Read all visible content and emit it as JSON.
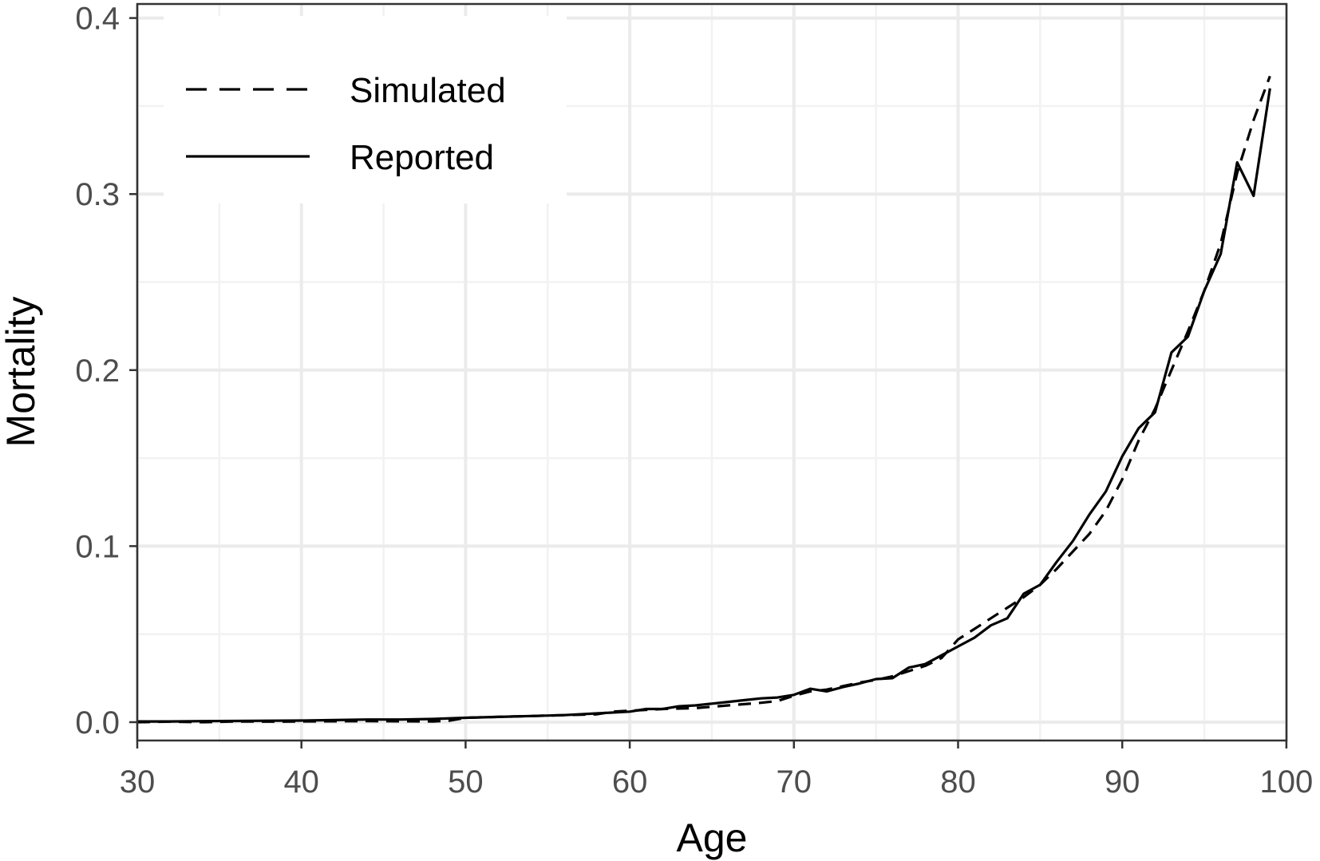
{
  "chart_data": {
    "type": "line",
    "xlabel": "Age",
    "ylabel": "Mortality",
    "xlim": [
      30,
      100
    ],
    "ylim": [
      0,
      0.4
    ],
    "x_ticks": [
      30,
      40,
      50,
      60,
      70,
      80,
      90,
      100
    ],
    "y_ticks": [
      0.0,
      0.1,
      0.2,
      0.3,
      0.4
    ],
    "x_tick_labels": [
      "30",
      "40",
      "50",
      "60",
      "70",
      "80",
      "90",
      "100"
    ],
    "y_tick_labels": [
      "0.0",
      "0.1",
      "0.2",
      "0.3",
      "0.4"
    ],
    "grid": true,
    "legend_position": "top-left",
    "series": [
      {
        "name": "Simulated",
        "style": "dashed",
        "color": "#000000",
        "x": [
          30,
          32,
          34,
          36,
          38,
          40,
          42,
          44,
          46,
          48,
          49,
          50,
          52,
          54,
          56,
          58,
          59,
          60,
          62,
          64,
          66,
          68,
          69,
          70,
          71,
          72,
          73,
          74,
          75,
          76,
          77,
          78,
          79,
          80,
          81,
          82,
          83,
          84,
          85,
          86,
          87,
          88,
          89,
          90,
          91,
          92,
          93,
          94,
          95,
          96,
          97,
          98,
          99
        ],
        "y": [
          0.0,
          0.0003,
          0.0,
          0.0004,
          0.0003,
          0.0004,
          0.0005,
          0.0006,
          0.0005,
          0.0004,
          0.0008,
          0.0025,
          0.003,
          0.0035,
          0.004,
          0.0045,
          0.006,
          0.0065,
          0.0075,
          0.008,
          0.0095,
          0.011,
          0.012,
          0.015,
          0.0175,
          0.0185,
          0.0205,
          0.0225,
          0.024,
          0.026,
          0.029,
          0.032,
          0.0365,
          0.047,
          0.053,
          0.059,
          0.065,
          0.071,
          0.078,
          0.087,
          0.097,
          0.107,
          0.12,
          0.138,
          0.16,
          0.178,
          0.2,
          0.222,
          0.245,
          0.272,
          0.312,
          0.342,
          0.367
        ]
      },
      {
        "name": "Reported",
        "style": "solid",
        "color": "#000000",
        "x": [
          30,
          32,
          34,
          36,
          38,
          40,
          42,
          44,
          46,
          48,
          50,
          52,
          54,
          56,
          58,
          60,
          61,
          62,
          63,
          64,
          65,
          66,
          67,
          68,
          69,
          70,
          71,
          72,
          73,
          74,
          75,
          76,
          77,
          78,
          79,
          80,
          81,
          82,
          83,
          84,
          85,
          86,
          87,
          88,
          89,
          90,
          91,
          92,
          93,
          94,
          95,
          96,
          97,
          98,
          99
        ],
        "y": [
          0.0004,
          0.0004,
          0.0006,
          0.0007,
          0.0008,
          0.0009,
          0.0012,
          0.0015,
          0.0015,
          0.0018,
          0.0025,
          0.003,
          0.0035,
          0.004,
          0.005,
          0.006,
          0.0075,
          0.0075,
          0.009,
          0.0095,
          0.0105,
          0.0115,
          0.0125,
          0.0135,
          0.014,
          0.0155,
          0.019,
          0.0175,
          0.02,
          0.022,
          0.0245,
          0.025,
          0.031,
          0.033,
          0.038,
          0.043,
          0.048,
          0.055,
          0.059,
          0.073,
          0.078,
          0.091,
          0.103,
          0.118,
          0.131,
          0.151,
          0.167,
          0.176,
          0.21,
          0.219,
          0.245,
          0.266,
          0.318,
          0.299,
          0.36
        ]
      }
    ]
  }
}
